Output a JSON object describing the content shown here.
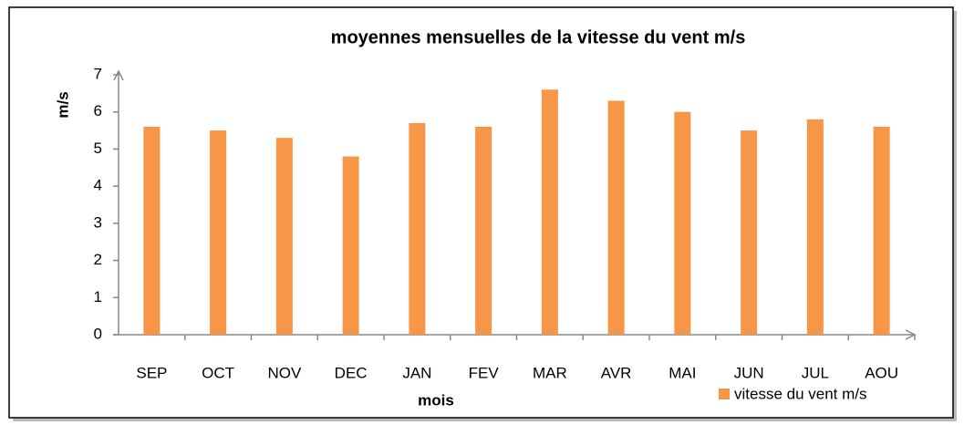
{
  "chart_data": {
    "type": "bar",
    "title": "moyennes mensuelles de la vitesse du vent m/s",
    "x_label": "mois",
    "y_label": "m/s",
    "categories": [
      "SEP",
      "OCT",
      "NOV",
      "DEC",
      "JAN",
      "FEV",
      "MAR",
      "AVR",
      "MAI",
      "JUN",
      "JUL",
      "AOU"
    ],
    "series": [
      {
        "name": "vitesse du vent m/s",
        "color": "#f79646",
        "values": [
          5.6,
          5.5,
          5.3,
          4.8,
          5.7,
          5.6,
          6.6,
          6.3,
          6.0,
          5.5,
          5.8,
          5.6
        ]
      }
    ],
    "ylim": [
      0,
      7
    ],
    "yticks": [
      0,
      1,
      2,
      3,
      4,
      5,
      6,
      7
    ],
    "grid": false,
    "legend": "bottom-right"
  }
}
